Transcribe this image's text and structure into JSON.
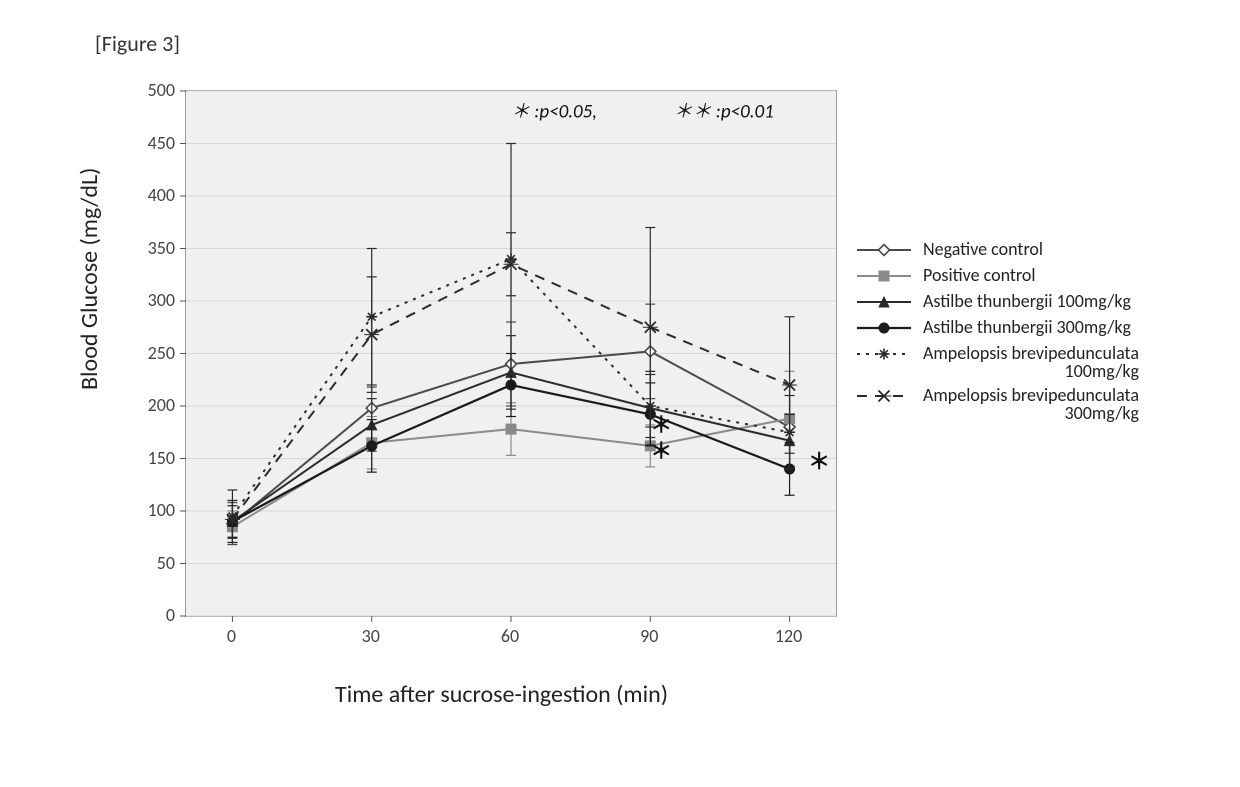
{
  "figure_label": "[Figure 3]",
  "chart": {
    "type": "line-with-errorbars",
    "background_color": "#f0f0f0",
    "plot_border_color": "#9a9a9a",
    "grid_color": "#d8d8d8",
    "ylabel": "Blood Glucose (mg/dL)",
    "xlabel": "Time after sucrose-ingestion (min)",
    "xlim": [
      -10,
      130
    ],
    "ylim": [
      0,
      500
    ],
    "ytick_step": 50,
    "yticks": [
      0,
      50,
      100,
      150,
      200,
      250,
      300,
      350,
      400,
      450,
      500
    ],
    "x_categories": [
      0,
      30,
      60,
      90,
      120
    ],
    "x_positions": [
      0,
      30,
      60,
      90,
      120
    ],
    "label_fontsize": 24,
    "tick_fontsize": 18,
    "significance_note": {
      "single": "＊ :p<0.05,",
      "double": "＊＊ :p<0.01",
      "fontsize": 19
    },
    "sig_markers": [
      {
        "x": 90,
        "y": 175,
        "symbol": "＊"
      },
      {
        "x": 90,
        "y": 150,
        "symbol": "＊"
      },
      {
        "x": 124,
        "y": 140,
        "symbol": "＊"
      }
    ],
    "series": [
      {
        "label": "Negative control",
        "color": "#4a4a4a",
        "line_dash": "none",
        "line_width": 2.0,
        "marker": "diamond-open",
        "marker_fill": "#ffffff",
        "marker_stroke": "#4a4a4a",
        "marker_size": 11,
        "x": [
          0,
          30,
          60,
          90,
          120
        ],
        "y": [
          88,
          198,
          240,
          252,
          180
        ],
        "err": [
          20,
          20,
          40,
          45,
          40
        ]
      },
      {
        "label": "Positive control",
        "color": "#8a8a8a",
        "line_dash": "none",
        "line_width": 2.0,
        "marker": "square-filled",
        "marker_fill": "#8a8a8a",
        "marker_stroke": "#8a8a8a",
        "marker_size": 10,
        "x": [
          0,
          30,
          60,
          90,
          120
        ],
        "y": [
          85,
          165,
          178,
          162,
          188
        ],
        "err": [
          15,
          25,
          25,
          20,
          45
        ]
      },
      {
        "label": "Astilbe thunbergii 100mg/kg",
        "color": "#2b2b2b",
        "line_dash": "none",
        "line_width": 2.0,
        "marker": "triangle-filled",
        "marker_fill": "#2b2b2b",
        "marker_stroke": "#2b2b2b",
        "marker_size": 10,
        "x": [
          0,
          30,
          60,
          90,
          120
        ],
        "y": [
          90,
          182,
          232,
          198,
          167
        ],
        "err": [
          20,
          25,
          35,
          35,
          25
        ]
      },
      {
        "label": "Astilbe thunbergii 300mg/kg",
        "color": "#1a1a1a",
        "line_dash": "none",
        "line_width": 2.2,
        "marker": "circle-filled",
        "marker_fill": "#1a1a1a",
        "marker_stroke": "#1a1a1a",
        "marker_size": 10,
        "x": [
          0,
          30,
          60,
          90,
          120
        ],
        "y": [
          90,
          162,
          220,
          192,
          140
        ],
        "err": [
          15,
          25,
          30,
          30,
          25
        ]
      },
      {
        "label_line1": "Ampelopsis brevipedunculata",
        "label_line2": "100mg/kg",
        "color": "#2b2b2b",
        "line_dash": "dot",
        "line_width": 2.0,
        "marker": "asterisk",
        "marker_fill": "none",
        "marker_stroke": "#2b2b2b",
        "marker_size": 11,
        "x": [
          0,
          30,
          60,
          90,
          120
        ],
        "y": [
          95,
          285,
          340,
          200,
          175
        ],
        "err": [
          25,
          65,
          110,
          30,
          35
        ]
      },
      {
        "label_line1": "Ampelopsis brevipedunculata",
        "label_line2": "300mg/kg",
        "color": "#2b2b2b",
        "line_dash": "dash",
        "line_width": 2.0,
        "marker": "x-mark",
        "marker_fill": "none",
        "marker_stroke": "#2b2b2b",
        "marker_size": 11,
        "x": [
          0,
          30,
          60,
          90,
          120
        ],
        "y": [
          92,
          268,
          335,
          275,
          220
        ],
        "err": [
          18,
          55,
          30,
          95,
          65
        ]
      }
    ]
  }
}
